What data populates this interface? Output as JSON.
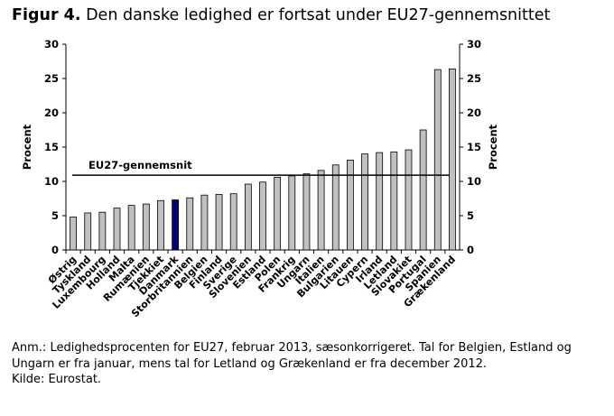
{
  "figure": {
    "number_label": "Figur 4.",
    "title": "Den danske ledighed er fortsat under EU27-gennemsnittet",
    "note": "Anm.: Ledighedsprocenten for EU27, februar 2013, sæsonkorrigeret. Tal for Belgien, Estland og Ungarn er fra januar, mens tal for Letland og Grækenland er fra december 2012.",
    "source": "Kilde: Eurostat."
  },
  "chart_data": {
    "type": "bar",
    "title": "Den danske ledighed er fortsat under EU27-gennemsnittet",
    "ylabel_left": "Procent",
    "ylabel_right": "Procent",
    "ylim": [
      0,
      30
    ],
    "yticks": [
      0,
      5,
      10,
      15,
      20,
      25,
      30
    ],
    "categories": [
      "Østrig",
      "Tyskland",
      "Luxembourg",
      "Holland",
      "Malta",
      "Rumænien",
      "Tjekkiet",
      "Danmark",
      "Storbritannien",
      "Belgien",
      "Finland",
      "Sverige",
      "Slovenien",
      "Estland",
      "Polen",
      "Frankrig",
      "Ungarn",
      "Italien",
      "Bulgarien",
      "Litauen",
      "Cypern",
      "Irland",
      "Letland",
      "Slovakiet",
      "Portugal",
      "Spanien",
      "Grækenland"
    ],
    "values": [
      4.8,
      5.4,
      5.5,
      6.1,
      6.5,
      6.7,
      7.2,
      7.3,
      7.6,
      8.0,
      8.1,
      8.2,
      9.6,
      9.9,
      10.6,
      10.8,
      11.1,
      11.6,
      12.4,
      13.1,
      14.0,
      14.2,
      14.3,
      14.6,
      17.5,
      26.3,
      26.4
    ],
    "highlight": "Danmark",
    "bar_color": "#c0c0c0",
    "highlight_color": "#000080",
    "reference_line": {
      "label": "EU27-gennemsnit",
      "value": 10.9
    }
  }
}
